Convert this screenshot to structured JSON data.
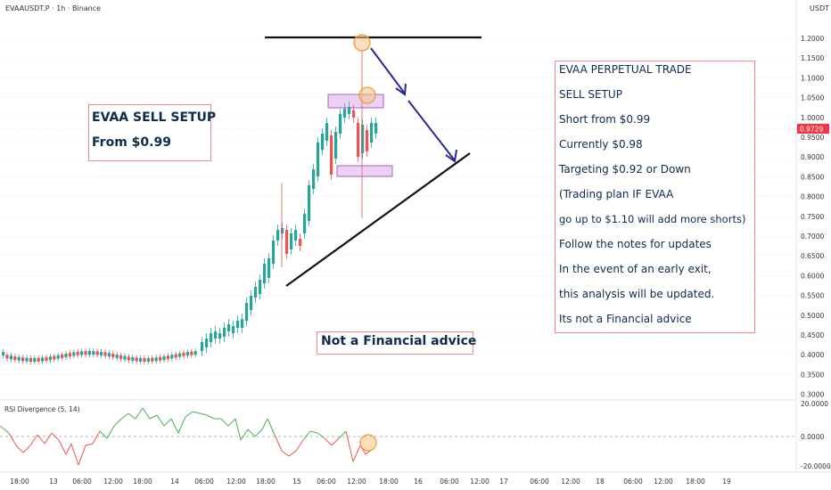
{
  "header": {
    "title": "EVAAUSDT.P · 1h · Binance",
    "currency": "USDT"
  },
  "price_axis": {
    "labels": [
      "1.2000",
      "1.1500",
      "1.1000",
      "1.0500",
      "1.0000",
      "0.9500",
      "0.9000",
      "0.8500",
      "0.8000",
      "0.7500",
      "0.7000",
      "0.6500",
      "0.6000",
      "0.5500",
      "0.5000",
      "0.4500",
      "0.4000",
      "0.3500",
      "0.3000"
    ],
    "current_price": "0.9729",
    "current_price_color": "#f23645"
  },
  "rsi": {
    "label": "RSI Divergence (5, 14)",
    "axis_labels": [
      "20.0000",
      "0.0000",
      "-20.0000"
    ]
  },
  "time_axis": {
    "labels": [
      "18:00",
      "13",
      "06:00",
      "12:00",
      "18:00",
      "14",
      "06:00",
      "12:00",
      "18:00",
      "15",
      "06:00",
      "12:00",
      "18:00",
      "16",
      "06:00",
      "12:00",
      "17",
      "06:00",
      "12:00",
      "18",
      "06:00",
      "12:00",
      "18:00",
      "19"
    ]
  },
  "annotations": {
    "left_box": [
      "EVAA SELL SETUP",
      "From $0.99"
    ],
    "right_box": [
      "EVAA PERPETUAL TRADE",
      "SELL SETUP",
      "Short from $0.99",
      "Currently $0.98",
      "Targeting $0.92 or Down",
      "(Trading plan IF EVAA",
      "go up to $1.10 will add more shorts)",
      "Follow the notes for updates",
      "In the event of an early exit,",
      "this analysis will be updated.",
      "Its not a Financial advice"
    ],
    "bottom_box": "Not a Financial advice"
  },
  "colors": {
    "bull": "#26a69a",
    "bear": "#ef5350",
    "arrow": "#2a2a8f",
    "box_border": "#f08a8a",
    "zone": "#c77ed9",
    "circle": "#f0a030",
    "rsi_up": "#4caf50",
    "rsi_down": "#ef5350"
  }
}
